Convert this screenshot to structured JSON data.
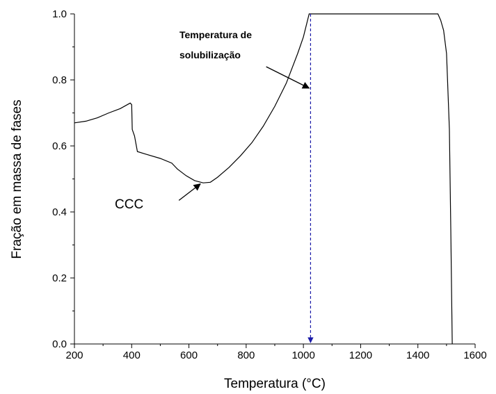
{
  "chart_data": {
    "type": "line",
    "title": "",
    "xlabel": "Temperatura (°C)",
    "ylabel": "Fração em massa de fases",
    "xlim": [
      200,
      1600
    ],
    "ylim": [
      0.0,
      1.0
    ],
    "x_ticks": [
      200,
      400,
      600,
      800,
      1000,
      1200,
      1400,
      1600
    ],
    "x_tick_labels": [
      "200",
      "400",
      "600",
      "800",
      "1000",
      "1200",
      "1400",
      "1600"
    ],
    "y_ticks": [
      0.0,
      0.2,
      0.4,
      0.6,
      0.8,
      1.0
    ],
    "y_tick_labels": [
      "0.0",
      "0.2",
      "0.4",
      "0.6",
      "0.8",
      "1.0"
    ],
    "grid": false,
    "legend": "none",
    "series": [
      {
        "color": "#000000",
        "points": [
          [
            200,
            0.67
          ],
          [
            240,
            0.675
          ],
          [
            280,
            0.685
          ],
          [
            320,
            0.7
          ],
          [
            360,
            0.713
          ],
          [
            395,
            0.73
          ],
          [
            400,
            0.725
          ],
          [
            402,
            0.65
          ],
          [
            410,
            0.63
          ],
          [
            420,
            0.583
          ],
          [
            450,
            0.575
          ],
          [
            500,
            0.562
          ],
          [
            540,
            0.548
          ],
          [
            560,
            0.53
          ],
          [
            590,
            0.51
          ],
          [
            620,
            0.495
          ],
          [
            650,
            0.488
          ],
          [
            675,
            0.49
          ],
          [
            700,
            0.505
          ],
          [
            740,
            0.535
          ],
          [
            780,
            0.57
          ],
          [
            820,
            0.61
          ],
          [
            860,
            0.66
          ],
          [
            900,
            0.72
          ],
          [
            940,
            0.79
          ],
          [
            980,
            0.88
          ],
          [
            1000,
            0.93
          ],
          [
            1020,
            1.0
          ],
          [
            1100,
            1.0
          ],
          [
            1200,
            1.0
          ],
          [
            1300,
            1.0
          ],
          [
            1400,
            1.0
          ],
          [
            1470,
            1.0
          ],
          [
            1480,
            0.98
          ],
          [
            1490,
            0.95
          ],
          [
            1500,
            0.88
          ],
          [
            1510,
            0.65
          ],
          [
            1515,
            0.35
          ],
          [
            1520,
            0.0
          ]
        ]
      }
    ],
    "reference_lines": [
      {
        "orientation": "vertical",
        "x": 1025,
        "y_from": 1.0,
        "y_to": 0.0,
        "style": "dashed",
        "color": "#1a1aa8",
        "arrow_at": "bottom"
      }
    ],
    "annotations": [
      {
        "id": "ccc",
        "text": "CCC",
        "arrow_from": [
          565,
          0.435
        ],
        "arrow_to": [
          640,
          0.485
        ]
      },
      {
        "id": "solub",
        "lines": [
          "Temperatura de",
          "solubilização"
        ],
        "arrow_from": [
          870,
          0.84
        ],
        "arrow_to": [
          1020,
          0.775
        ]
      }
    ]
  }
}
